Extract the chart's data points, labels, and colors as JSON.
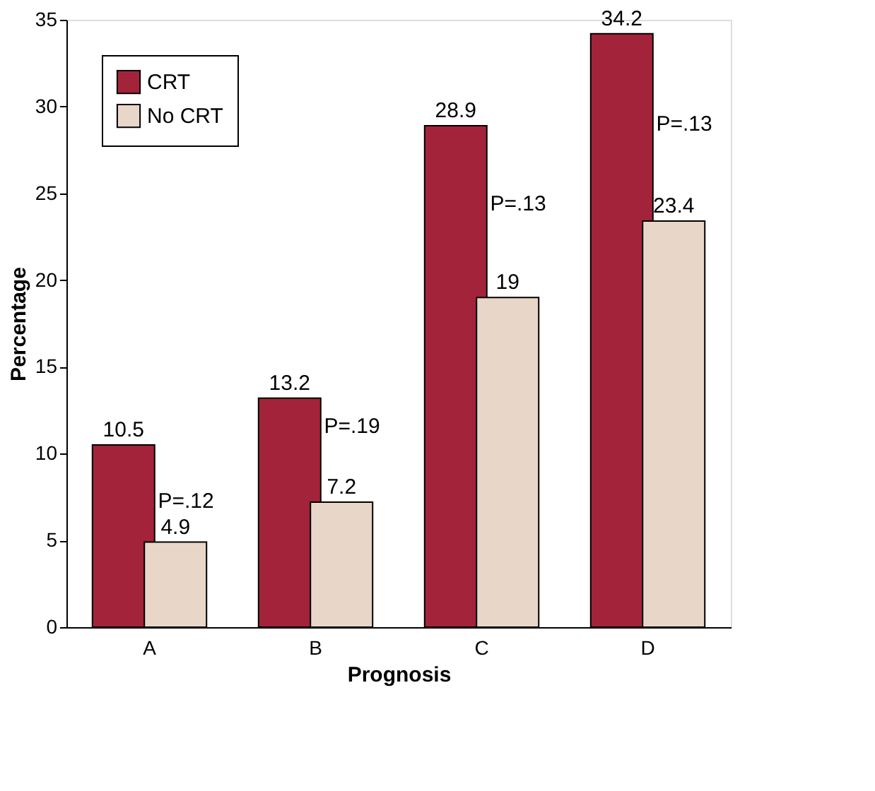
{
  "chart_data": {
    "type": "bar",
    "xlabel": "Prognosis",
    "ylabel": "Percentage",
    "categories": [
      "A",
      "B",
      "C",
      "D"
    ],
    "series": [
      {
        "name": "CRT",
        "color": "#a3243a",
        "values": [
          10.5,
          13.2,
          28.9,
          34.2
        ]
      },
      {
        "name": "No CRT",
        "color": "#e8d6c9",
        "values": [
          4.9,
          7.2,
          19,
          23.4
        ]
      }
    ],
    "ylim": [
      0,
      35
    ],
    "yticks": [
      0,
      5,
      10,
      15,
      20,
      25,
      30,
      35
    ],
    "grid": false,
    "legend": "top left",
    "data_labels": true,
    "annotations": [
      {
        "text": "P=.12",
        "x": "A",
        "y": 7.3
      },
      {
        "text": "P=.19",
        "x": "B",
        "y": 11.6
      },
      {
        "text": "P=.13",
        "x": "C",
        "y": 24.4
      },
      {
        "text": "P=.13",
        "x": "D",
        "y": 29
      }
    ]
  }
}
